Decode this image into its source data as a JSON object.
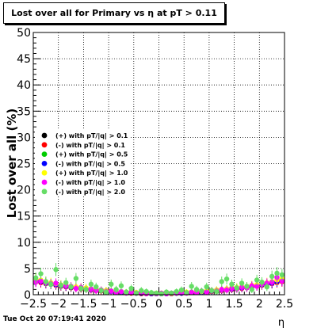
{
  "title": "Lost over all for Primary vs   η at pT > 0.11",
  "timestamp": "Tue Oct 20 07:19:41 2020",
  "chart_data": {
    "type": "scatter",
    "title": "Lost over all for Primary vs   η at pT > 0.11",
    "xlabel": "η",
    "ylabel": "Lost over all (%)",
    "xlim": [
      -2.5,
      2.5
    ],
    "ylim": [
      0,
      50
    ],
    "x_ticks": [
      "−2.5",
      "−2",
      "−1.5",
      "−1",
      "−0.5",
      "0",
      "0.5",
      "1",
      "1.5",
      "2",
      "2.5"
    ],
    "y_ticks": [
      "0",
      "5",
      "10",
      "15",
      "20",
      "25",
      "30",
      "35",
      "40",
      "45",
      "50"
    ],
    "grid": true,
    "legend_position": "middle-left",
    "x": [
      -2.45,
      -2.35,
      -2.25,
      -2.15,
      -2.05,
      -1.95,
      -1.85,
      -1.75,
      -1.65,
      -1.55,
      -1.45,
      -1.35,
      -1.25,
      -1.15,
      -1.05,
      -0.95,
      -0.85,
      -0.75,
      -0.65,
      -0.55,
      -0.45,
      -0.35,
      -0.25,
      -0.15,
      -0.05,
      0.05,
      0.15,
      0.25,
      0.35,
      0.45,
      0.55,
      0.65,
      0.75,
      0.85,
      0.95,
      1.05,
      1.15,
      1.25,
      1.35,
      1.45,
      1.55,
      1.65,
      1.75,
      1.85,
      1.95,
      2.05,
      2.15,
      2.25,
      2.35,
      2.45
    ],
    "series": [
      {
        "name": "(+) with pT/|q| > 0.1",
        "color": "#000000",
        "values": [
          2.6,
          2.4,
          2.2,
          2.0,
          1.9,
          1.7,
          1.6,
          1.4,
          1.3,
          1.2,
          1.1,
          1.0,
          0.9,
          0.8,
          0.7,
          0.6,
          0.5,
          0.5,
          0.4,
          0.4,
          0.3,
          0.3,
          0.3,
          0.2,
          0.2,
          0.2,
          0.2,
          0.3,
          0.3,
          0.3,
          0.4,
          0.4,
          0.5,
          0.5,
          0.6,
          0.7,
          0.8,
          0.9,
          1.0,
          1.1,
          1.2,
          1.3,
          1.4,
          1.6,
          1.7,
          1.9,
          2.0,
          2.2,
          2.4,
          2.6
        ]
      },
      {
        "name": "(-) with pT/|q| > 0.1",
        "color": "#ff0000",
        "values": [
          2.5,
          2.3,
          2.1,
          2.0,
          1.8,
          1.6,
          1.5,
          1.3,
          1.2,
          1.1,
          1.0,
          0.9,
          0.8,
          0.7,
          0.6,
          0.6,
          0.5,
          0.4,
          0.4,
          0.3,
          0.3,
          0.2,
          0.2,
          0.2,
          0.2,
          0.2,
          0.2,
          0.2,
          0.3,
          0.3,
          0.4,
          0.4,
          0.5,
          0.5,
          0.6,
          0.6,
          0.7,
          0.8,
          0.9,
          1.0,
          1.1,
          1.2,
          1.3,
          1.5,
          1.6,
          1.8,
          2.0,
          2.1,
          2.3,
          2.5
        ]
      },
      {
        "name": "(+) with pT/|q| > 0.5",
        "color": "#00cc00",
        "values": [
          2.8,
          2.6,
          2.3,
          2.1,
          2.0,
          1.8,
          1.7,
          1.5,
          1.4,
          1.3,
          1.2,
          1.1,
          1.0,
          0.9,
          0.8,
          0.7,
          0.6,
          0.5,
          0.5,
          0.4,
          0.4,
          0.3,
          0.3,
          0.3,
          0.2,
          0.2,
          0.3,
          0.3,
          0.3,
          0.4,
          0.4,
          0.5,
          0.5,
          0.6,
          0.7,
          0.8,
          0.9,
          1.0,
          1.1,
          1.2,
          1.3,
          1.4,
          1.5,
          1.7,
          1.8,
          2.0,
          2.1,
          2.3,
          2.6,
          2.8
        ]
      },
      {
        "name": "(-) with pT/|q| > 0.5",
        "color": "#0000ff",
        "values": [
          2.7,
          2.5,
          2.2,
          2.0,
          1.9,
          1.7,
          1.6,
          1.4,
          1.3,
          1.2,
          1.1,
          1.0,
          0.9,
          0.8,
          0.7,
          0.6,
          0.5,
          0.5,
          0.4,
          0.4,
          0.3,
          0.3,
          0.3,
          0.2,
          0.2,
          0.2,
          0.2,
          0.3,
          0.3,
          0.3,
          0.4,
          0.4,
          0.5,
          0.5,
          0.6,
          0.7,
          0.8,
          0.9,
          1.0,
          1.1,
          1.2,
          1.3,
          1.4,
          1.6,
          1.7,
          1.9,
          2.0,
          2.2,
          2.5,
          2.7
        ]
      },
      {
        "name": "(+) with pT/|q| > 1.0",
        "color": "#ffff00",
        "values": [
          3.0,
          2.8,
          2.5,
          2.3,
          2.1,
          1.9,
          1.8,
          1.6,
          1.5,
          1.4,
          1.3,
          1.1,
          1.0,
          0.9,
          0.8,
          0.7,
          0.6,
          0.6,
          0.5,
          0.5,
          0.4,
          0.4,
          0.3,
          0.3,
          0.3,
          0.3,
          0.3,
          0.3,
          0.4,
          0.4,
          0.5,
          0.5,
          0.6,
          0.6,
          0.7,
          0.8,
          0.9,
          1.0,
          1.1,
          1.3,
          1.4,
          1.5,
          1.6,
          1.8,
          1.9,
          2.1,
          2.3,
          2.5,
          2.8,
          3.0
        ]
      },
      {
        "name": "(-) with pT/|q| > 1.0",
        "color": "#ff00ff",
        "values": [
          2.4,
          2.6,
          2.3,
          2.1,
          2.2,
          1.8,
          1.7,
          1.6,
          1.2,
          1.4,
          1.0,
          1.1,
          0.8,
          0.9,
          0.6,
          0.7,
          0.4,
          0.6,
          0.3,
          0.5,
          0.3,
          0.4,
          0.2,
          0.3,
          0.2,
          0.3,
          0.2,
          0.3,
          0.3,
          0.4,
          0.3,
          0.5,
          0.4,
          0.7,
          0.5,
          0.8,
          0.7,
          1.0,
          0.9,
          1.2,
          1.1,
          1.4,
          1.3,
          1.7,
          1.6,
          2.0,
          2.2,
          2.4,
          3.3,
          2.6
        ]
      },
      {
        "name": "(-) with pT/|q| > 2.0",
        "color": "#66dd66",
        "values": [
          3.2,
          4.0,
          2.5,
          2.0,
          4.8,
          1.8,
          2.3,
          1.5,
          3.1,
          1.2,
          1.0,
          2.0,
          1.5,
          0.8,
          0.5,
          2.0,
          1.0,
          1.7,
          0.5,
          1.2,
          0.3,
          0.8,
          0.6,
          0.4,
          0.3,
          0.2,
          0.5,
          0.3,
          0.6,
          0.9,
          0.4,
          1.6,
          1.0,
          0.7,
          1.5,
          0.8,
          0.6,
          2.5,
          3.0,
          2.0,
          1.3,
          2.2,
          1.6,
          1.0,
          2.8,
          2.4,
          1.5,
          3.5,
          4.1,
          3.8
        ]
      }
    ]
  }
}
